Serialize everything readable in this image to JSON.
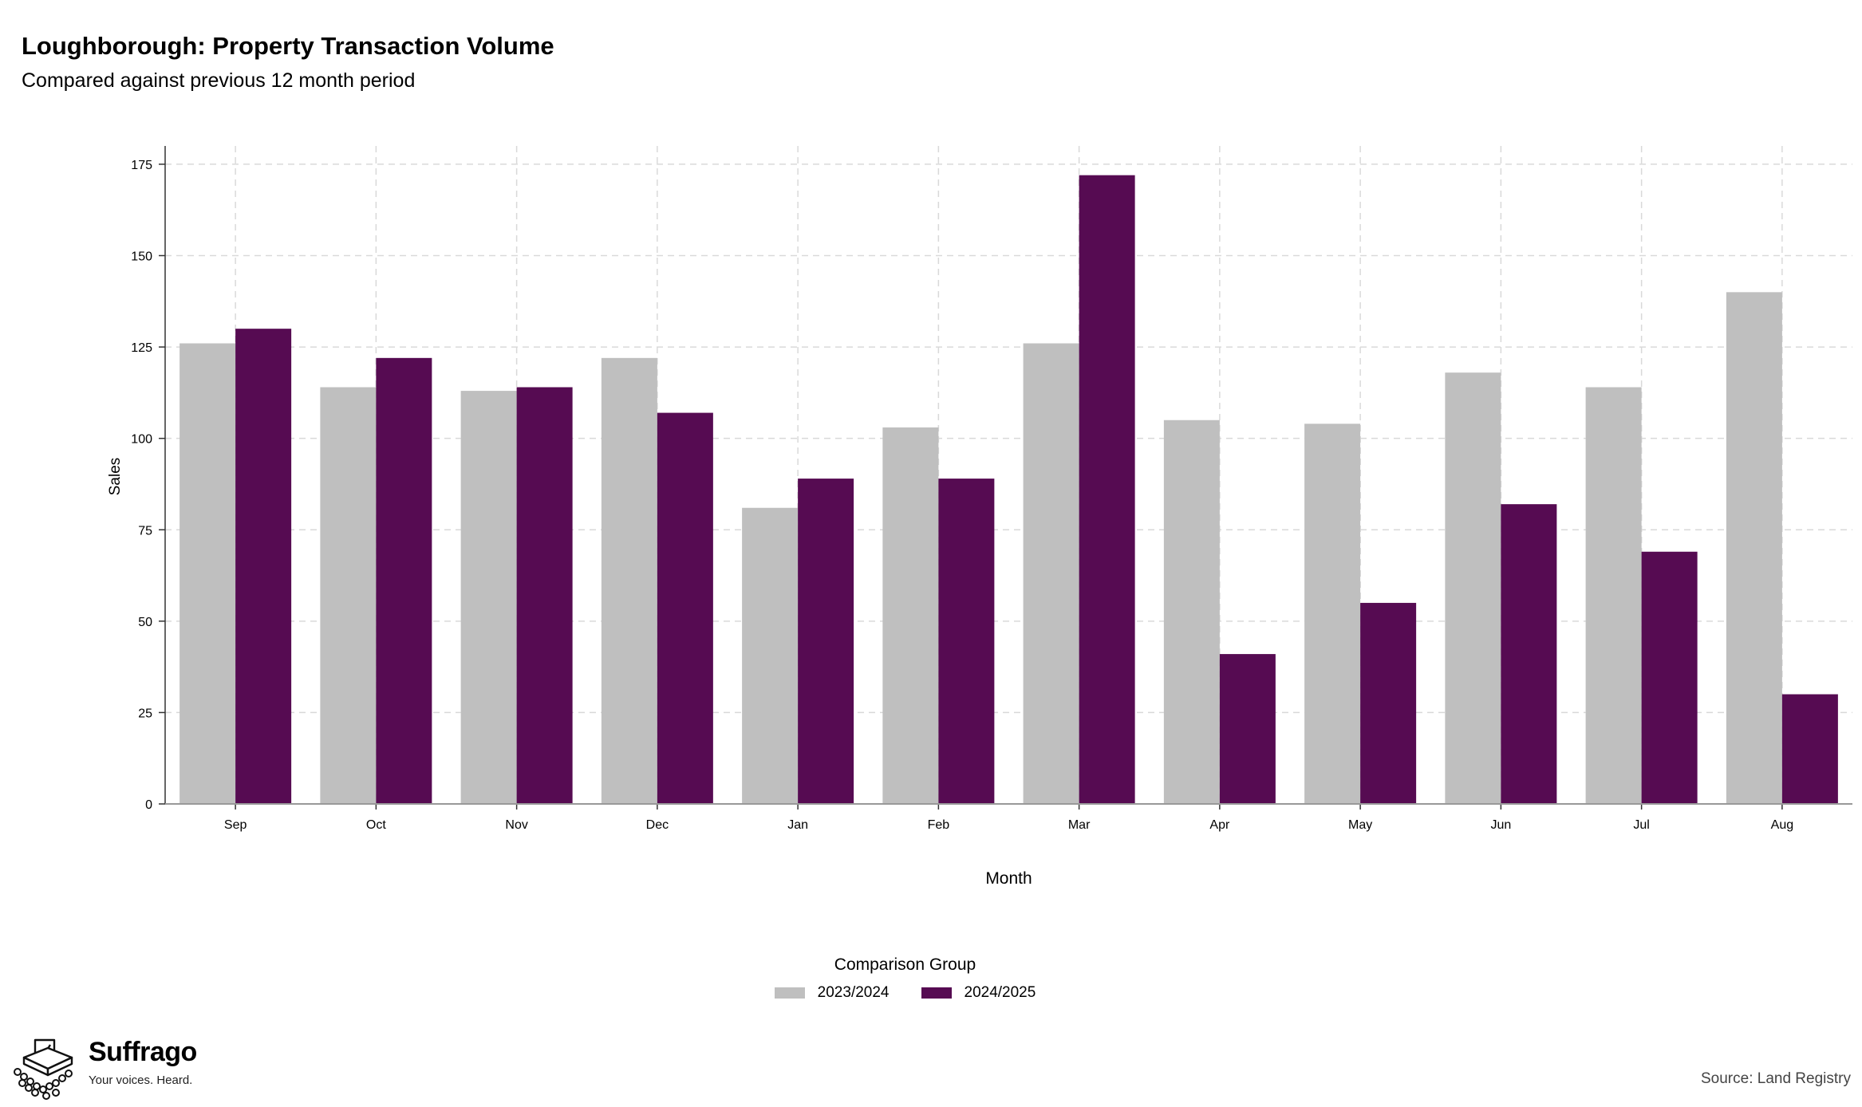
{
  "title": "Loughborough: Property Transaction Volume",
  "subtitle": "Compared against previous 12 month period",
  "chart_data": {
    "type": "bar",
    "title": "Loughborough: Property Transaction Volume",
    "subtitle": "Compared against previous 12 month period",
    "xlabel": "Month",
    "ylabel": "Sales",
    "categories": [
      "Sep",
      "Oct",
      "Nov",
      "Dec",
      "Jan",
      "Feb",
      "Mar",
      "Apr",
      "May",
      "Jun",
      "Jul",
      "Aug"
    ],
    "series": [
      {
        "name": "2023/2024",
        "color": "#bfbfbf",
        "values": [
          126,
          114,
          113,
          122,
          81,
          103,
          126,
          105,
          104,
          118,
          114,
          140
        ]
      },
      {
        "name": "2024/2025",
        "color": "#560b52",
        "values": [
          130,
          122,
          114,
          107,
          89,
          89,
          172,
          41,
          55,
          82,
          69,
          30
        ]
      }
    ],
    "ylim": [
      0,
      180
    ],
    "yticks": [
      0,
      25,
      50,
      75,
      100,
      125,
      150,
      175
    ],
    "grid": true,
    "legend_title": "Comparison Group",
    "legend_position": "bottom"
  },
  "legend": {
    "title": "Comparison Group",
    "items": [
      {
        "label": "2023/2024",
        "color": "#bfbfbf"
      },
      {
        "label": "2024/2025",
        "color": "#560b52"
      }
    ]
  },
  "brand": {
    "name": "Suffrago",
    "tagline": "Your voices. Heard."
  },
  "source": "Source: Land Registry"
}
